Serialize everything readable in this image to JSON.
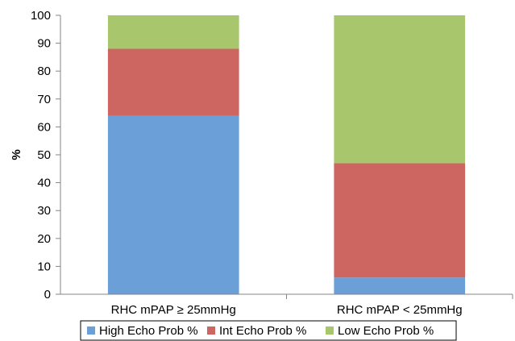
{
  "chart_data": {
    "type": "bar",
    "stacked": true,
    "categories": [
      "RHC mPAP ≥ 25mmHg",
      "RHC mPAP < 25mmHg"
    ],
    "series": [
      {
        "name": "High Echo Prob %",
        "color": "#6a9fd8",
        "values": [
          64,
          6
        ]
      },
      {
        "name": "Int Echo Prob %",
        "color": "#cd6560",
        "values": [
          24,
          41
        ]
      },
      {
        "name": "Low Echo Prob %",
        "color": "#a8c66c",
        "values": [
          12,
          53
        ]
      }
    ],
    "ylabel": "%",
    "ylim": [
      0,
      100
    ],
    "yticks": [
      0,
      10,
      20,
      30,
      40,
      50,
      60,
      70,
      80,
      90,
      100
    ],
    "grid": false,
    "legend": "bottom"
  }
}
